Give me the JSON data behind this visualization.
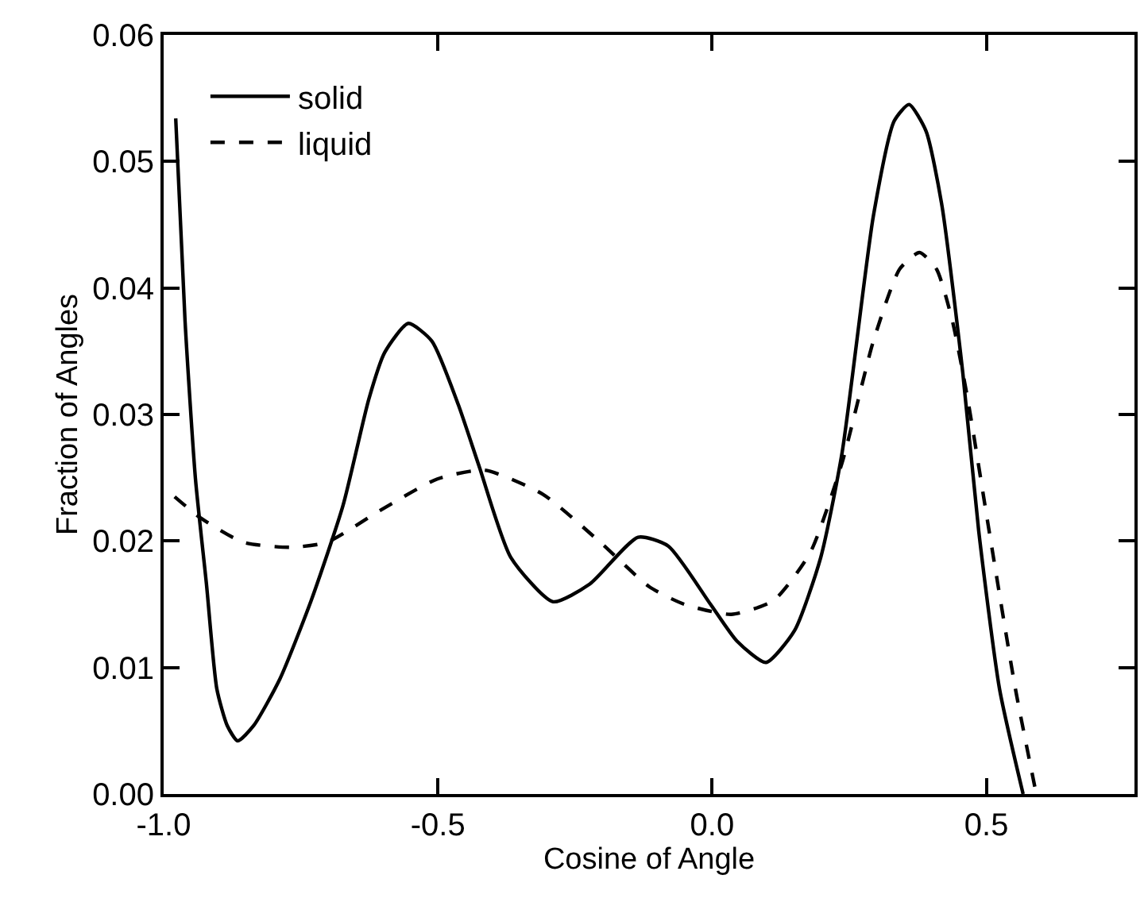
{
  "chart_data": {
    "type": "line",
    "xlabel": "Cosine of Angle",
    "ylabel": "Fraction of Angles",
    "xlim": [
      -1.0,
      0.77
    ],
    "ylim": [
      0.0,
      0.06
    ],
    "xticks": [
      {
        "value": -1.0,
        "label": "-1.0"
      },
      {
        "value": -0.5,
        "label": "-0.5"
      },
      {
        "value": 0.0,
        "label": "0.0"
      },
      {
        "value": 0.5,
        "label": "0.5"
      }
    ],
    "yticks": [
      {
        "value": 0.0,
        "label": "0.00"
      },
      {
        "value": 0.01,
        "label": "0.01"
      },
      {
        "value": 0.02,
        "label": "0.02"
      },
      {
        "value": 0.03,
        "label": "0.03"
      },
      {
        "value": 0.04,
        "label": "0.04"
      },
      {
        "value": 0.05,
        "label": "0.05"
      },
      {
        "value": 0.06,
        "label": "0.06"
      }
    ],
    "legend": "top left",
    "marker": "none",
    "series": [
      {
        "name": "solid",
        "color": "#000000",
        "line_style": "solid",
        "x": [
          -0.978,
          -0.961,
          -0.942,
          -0.922,
          -0.903,
          -0.884,
          -0.865,
          -0.836,
          -0.788,
          -0.731,
          -0.673,
          -0.626,
          -0.597,
          -0.554,
          -0.511,
          -0.463,
          -0.424,
          -0.367,
          -0.29,
          -0.223,
          -0.135,
          -0.08,
          -0.003,
          0.045,
          0.098,
          0.15,
          0.198,
          0.237,
          0.294,
          0.332,
          0.359,
          0.39,
          0.419,
          0.457,
          0.486,
          0.524,
          0.567
        ],
        "values": [
          0.0534,
          0.0374,
          0.0249,
          0.0166,
          0.0083,
          0.0054,
          0.0042,
          0.0054,
          0.0091,
          0.0153,
          0.0228,
          0.0312,
          0.0349,
          0.0372,
          0.0358,
          0.0308,
          0.0258,
          0.0187,
          0.0152,
          0.0166,
          0.0203,
          0.0196,
          0.015,
          0.0121,
          0.0104,
          0.0129,
          0.0187,
          0.027,
          0.0457,
          0.0532,
          0.0545,
          0.0524,
          0.0465,
          0.0333,
          0.0208,
          0.0083,
          0.0
        ]
      },
      {
        "name": "liquid",
        "color": "#000000",
        "line_style": "dashed",
        "x": [
          -0.98,
          -0.932,
          -0.855,
          -0.769,
          -0.702,
          -0.606,
          -0.501,
          -0.415,
          -0.309,
          -0.204,
          -0.115,
          -0.051,
          0.035,
          0.112,
          0.179,
          0.237,
          0.294,
          0.342,
          0.378,
          0.409,
          0.438,
          0.466,
          0.505,
          0.553,
          0.591
        ],
        "values": [
          0.0235,
          0.0218,
          0.0199,
          0.0195,
          0.0199,
          0.0224,
          0.0249,
          0.0256,
          0.0237,
          0.0199,
          0.0164,
          0.015,
          0.0142,
          0.0153,
          0.0191,
          0.0262,
          0.0358,
          0.0415,
          0.0428,
          0.0415,
          0.0374,
          0.0312,
          0.0208,
          0.0083,
          0.0
        ]
      }
    ]
  }
}
